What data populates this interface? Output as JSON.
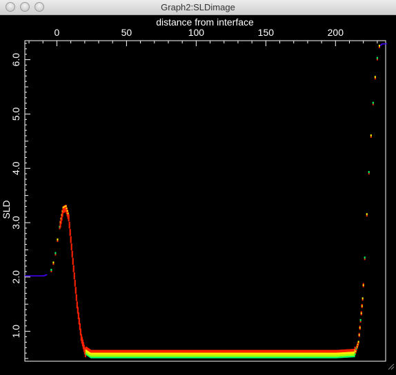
{
  "window": {
    "title": "Graph2:SLDimage"
  },
  "chart_data": {
    "type": "heatmap",
    "xlabel": "distance from interface",
    "ylabel": "SLD",
    "xlim": [
      -23,
      236
    ],
    "ylim": [
      0.45,
      6.35
    ],
    "x_ticks": [
      0,
      50,
      100,
      150,
      200
    ],
    "x_tick_labels": [
      "0",
      "50",
      "100",
      "150",
      "200"
    ],
    "y_ticks": [
      1.0,
      2.0,
      3.0,
      4.0,
      5.0,
      6.0
    ],
    "y_tick_labels": [
      "1.0",
      "2.0",
      "3.0",
      "4.0",
      "5.0",
      "6.0"
    ],
    "x_axis_position": "top",
    "y_axis_position": "left",
    "background": "#000000",
    "frame_color": "#ffffff",
    "colors": {
      "low_density": "#4400ff",
      "mid_low": "#00ff66",
      "mid": "#aaff00",
      "high": "#ffee00",
      "peak": "#ff2200"
    },
    "profile": [
      {
        "x": -23,
        "y": 2.03
      },
      {
        "x": -10,
        "y": 2.03
      },
      {
        "x": -5,
        "y": 2.08
      },
      {
        "x": -2,
        "y": 2.35
      },
      {
        "x": 1,
        "y": 2.85
      },
      {
        "x": 4,
        "y": 3.25
      },
      {
        "x": 6,
        "y": 3.28
      },
      {
        "x": 8,
        "y": 3.1
      },
      {
        "x": 11,
        "y": 2.3
      },
      {
        "x": 14,
        "y": 1.5
      },
      {
        "x": 17,
        "y": 0.9
      },
      {
        "x": 20,
        "y": 0.6
      },
      {
        "x": 24,
        "y": 0.53
      },
      {
        "x": 100,
        "y": 0.53
      },
      {
        "x": 200,
        "y": 0.53
      },
      {
        "x": 213,
        "y": 0.55
      },
      {
        "x": 216,
        "y": 0.8
      },
      {
        "x": 219,
        "y": 1.6
      },
      {
        "x": 221,
        "y": 2.6
      },
      {
        "x": 223,
        "y": 3.7
      },
      {
        "x": 225,
        "y": 4.6
      },
      {
        "x": 227,
        "y": 5.4
      },
      {
        "x": 229,
        "y": 5.95
      },
      {
        "x": 231,
        "y": 6.25
      },
      {
        "x": 233,
        "y": 6.3
      },
      {
        "x": 236,
        "y": 6.3
      }
    ]
  }
}
